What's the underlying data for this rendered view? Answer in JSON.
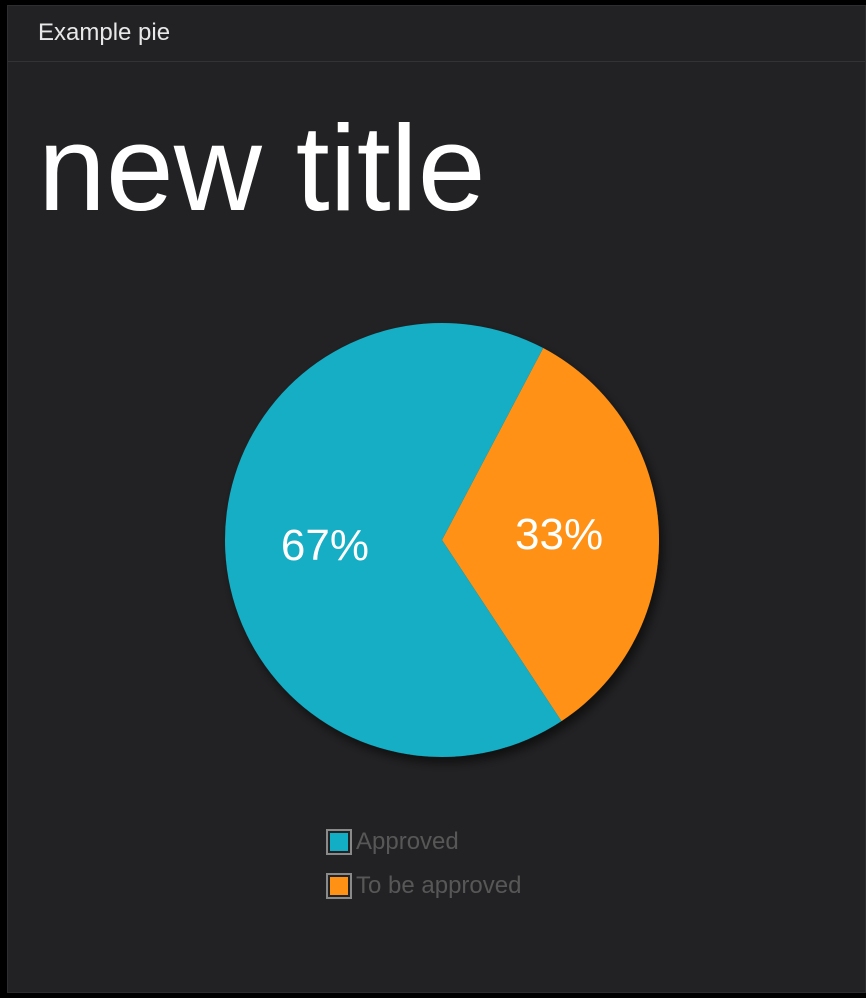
{
  "panel": {
    "title": "Example pie",
    "heading": "new title"
  },
  "chart_data": {
    "type": "pie",
    "title": "",
    "slices": [
      {
        "label": "To be approved",
        "value": 33,
        "display": "33%",
        "color": "#ff9215"
      },
      {
        "label": "Approved",
        "value": 67,
        "display": "67%",
        "color": "#12aec5"
      }
    ],
    "legend": {
      "placement": "bottom",
      "items": [
        {
          "label": "Approved",
          "color": "#12aec5"
        },
        {
          "label": "To be approved",
          "color": "#ff9215"
        }
      ]
    }
  }
}
